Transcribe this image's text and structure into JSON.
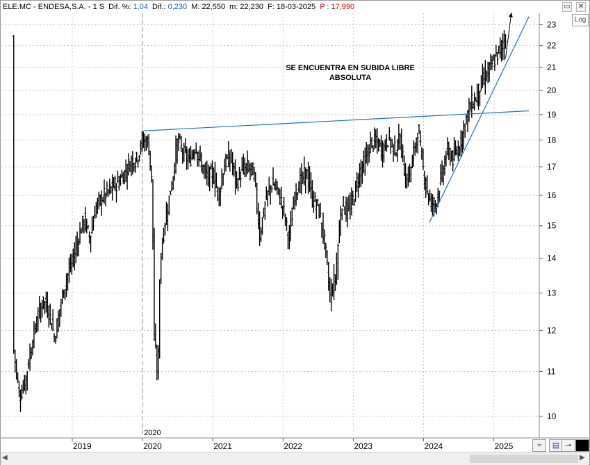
{
  "header": {
    "symbol": "ELE.MC - ENDESA,S.A. - 1 S",
    "dif_pct_label": "Dif. %:",
    "dif_pct_value": "1,04",
    "dif_label": "Dif.:",
    "dif_value": "0,230",
    "max_label": "M:",
    "max_value": "22,550",
    "min_label": "m:",
    "min_value": "22,230",
    "date_label": "F:",
    "date_value": "18-03-2025",
    "price_label": "P :",
    "price_value": "17,990"
  },
  "controls": {
    "log_label": "Log",
    "minimize_icon": "minimize-icon",
    "close_icon": "close-icon"
  },
  "annotation": {
    "line1": "SE ENCUENTRA EN SUBIDA LIBRE",
    "line2": "ABSOLUTA"
  },
  "marker_label": "2020",
  "colors": {
    "candles": "#000000",
    "trendline": "#1f6fbf",
    "grid": "#c8c8c8",
    "marker": "#999999"
  },
  "chart_data": {
    "type": "ohlc",
    "interval": "weekly",
    "y_scale": "log",
    "ylim": [
      9.65,
      23.6
    ],
    "y_ticks": [
      10,
      11,
      12,
      13,
      14,
      15,
      16,
      17,
      18,
      19,
      20,
      21,
      22,
      23
    ],
    "x_ticks": [
      "2019",
      "2020",
      "2021",
      "2022",
      "2023",
      "2024",
      "2025"
    ],
    "x_range": [
      "2018-03",
      "2025-07"
    ],
    "grid": true,
    "close_path": [
      [
        "2018-03",
        11.5
      ],
      [
        "2018-04",
        10.4
      ],
      [
        "2018-05",
        10.8
      ],
      [
        "2018-06",
        11.6
      ],
      [
        "2018-07",
        12.3
      ],
      [
        "2018-08",
        12.8
      ],
      [
        "2018-09",
        12.5
      ],
      [
        "2018-10",
        11.8
      ],
      [
        "2018-11",
        12.7
      ],
      [
        "2018-12",
        13.4
      ],
      [
        "2019-01",
        13.9
      ],
      [
        "2019-02",
        14.6
      ],
      [
        "2019-03",
        15.2
      ],
      [
        "2019-04",
        14.6
      ],
      [
        "2019-05",
        15.6
      ],
      [
        "2019-06",
        15.9
      ],
      [
        "2019-07",
        16.1
      ],
      [
        "2019-08",
        16.3
      ],
      [
        "2019-09",
        16.5
      ],
      [
        "2019-10",
        16.8
      ],
      [
        "2019-11",
        17.2
      ],
      [
        "2019-12",
        17.3
      ],
      [
        "2020-01",
        18.0
      ],
      [
        "2020-02",
        17.9
      ],
      [
        "2020-02-20",
        16.3
      ],
      [
        "2020-03",
        11.8
      ],
      [
        "2020-03-20",
        10.8
      ],
      [
        "2020-04",
        14.0
      ],
      [
        "2020-05",
        15.3
      ],
      [
        "2020-06",
        16.4
      ],
      [
        "2020-07",
        18.0
      ],
      [
        "2020-08",
        17.5
      ],
      [
        "2020-09",
        17.2
      ],
      [
        "2020-10",
        17.8
      ],
      [
        "2020-11",
        17.1
      ],
      [
        "2020-12",
        16.6
      ],
      [
        "2021-01",
        16.8
      ],
      [
        "2021-02",
        16.0
      ],
      [
        "2021-03",
        17.1
      ],
      [
        "2021-04",
        17.4
      ],
      [
        "2021-05",
        16.4
      ],
      [
        "2021-06",
        16.9
      ],
      [
        "2021-07",
        17.0
      ],
      [
        "2021-08",
        16.8
      ],
      [
        "2021-09",
        14.7
      ],
      [
        "2021-10",
        15.8
      ],
      [
        "2021-11",
        16.4
      ],
      [
        "2021-12",
        16.2
      ],
      [
        "2022-01",
        15.6
      ],
      [
        "2022-02",
        14.5
      ],
      [
        "2022-03",
        16.1
      ],
      [
        "2022-04",
        16.5
      ],
      [
        "2022-05",
        16.8
      ],
      [
        "2022-06",
        15.9
      ],
      [
        "2022-07",
        15.6
      ],
      [
        "2022-08",
        14.6
      ],
      [
        "2022-09",
        12.9
      ],
      [
        "2022-10",
        13.5
      ],
      [
        "2022-11",
        15.8
      ],
      [
        "2022-12",
        15.4
      ],
      [
        "2023-01",
        15.9
      ],
      [
        "2023-02",
        16.8
      ],
      [
        "2023-03",
        17.2
      ],
      [
        "2023-04",
        17.9
      ],
      [
        "2023-05",
        17.9
      ],
      [
        "2023-06",
        17.6
      ],
      [
        "2023-07",
        18.1
      ],
      [
        "2023-08",
        17.6
      ],
      [
        "2023-09",
        18.0
      ],
      [
        "2023-10",
        16.4
      ],
      [
        "2023-11",
        17.1
      ],
      [
        "2023-12",
        18.4
      ],
      [
        "2024-01",
        16.8
      ],
      [
        "2024-02",
        15.8
      ],
      [
        "2024-03",
        15.7
      ],
      [
        "2024-04",
        16.6
      ],
      [
        "2024-05",
        17.6
      ],
      [
        "2024-06",
        17.3
      ],
      [
        "2024-07",
        17.7
      ],
      [
        "2024-08",
        18.6
      ],
      [
        "2024-09",
        19.4
      ],
      [
        "2024-10",
        19.7
      ],
      [
        "2024-11",
        20.4
      ],
      [
        "2024-12",
        20.8
      ],
      [
        "2025-01",
        21.3
      ],
      [
        "2025-02",
        21.8
      ],
      [
        "2025-03",
        22.4
      ]
    ],
    "trendlines": [
      {
        "from": [
          "2020-01",
          18.35
        ],
        "to": [
          "2025-07",
          19.15
        ]
      },
      {
        "from": [
          "2024-02",
          15.1
        ],
        "to": [
          "2025-07",
          23.4
        ]
      }
    ],
    "arrow": {
      "from": [
        "2025-03",
        21.4
      ],
      "to": [
        "2025-04",
        23.6
      ]
    },
    "vertical_marker": "2020-01"
  }
}
